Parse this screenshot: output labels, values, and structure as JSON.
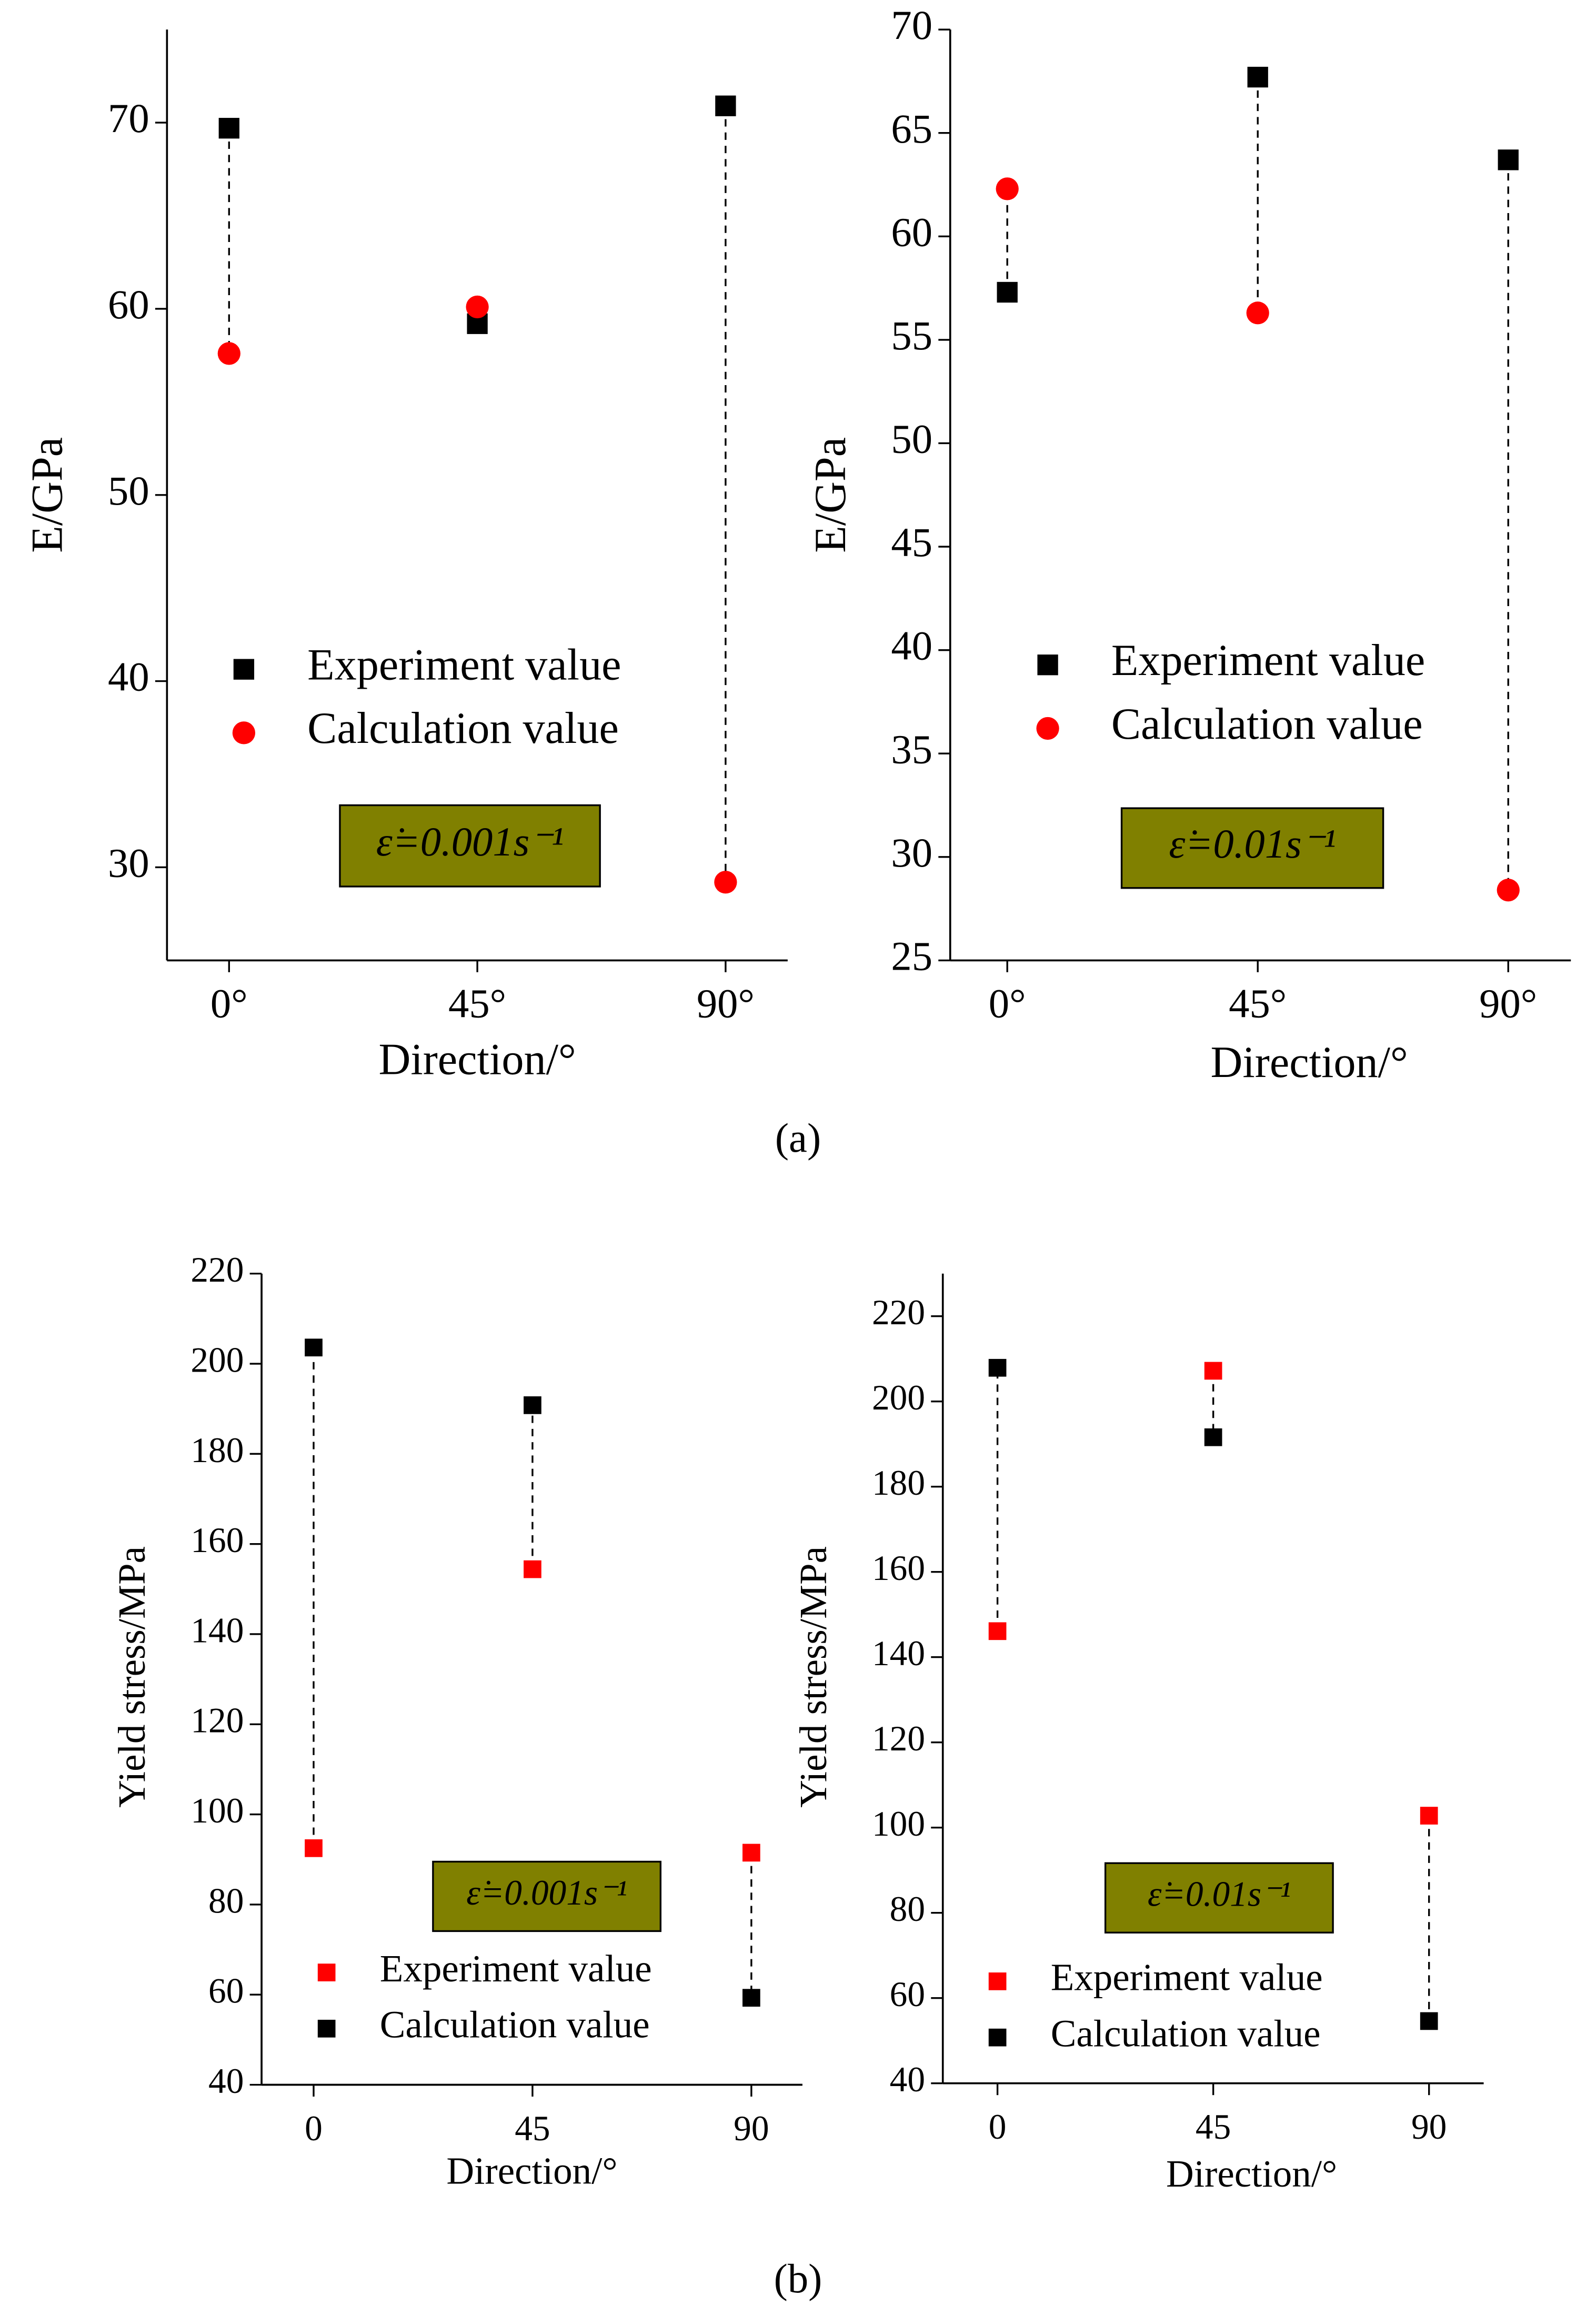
{
  "chart_data": [
    {
      "type": "scatter",
      "ylabel": "E/GPa",
      "xlabel": "Direction/°",
      "annotation": "ε̇=0.001s⁻¹",
      "x": [
        0,
        45,
        90
      ],
      "xlim": [
        -11.25,
        101.25
      ],
      "xticks": [
        {
          "value": 0,
          "label": "0°"
        },
        {
          "value": 45,
          "label": "45°"
        },
        {
          "value": 90,
          "label": "90°"
        }
      ],
      "ylim": [
        25,
        75
      ],
      "yticks": [
        30,
        40,
        50,
        60,
        70
      ],
      "series": [
        {
          "name": "Experiment value",
          "color": "#000000",
          "marker": "square",
          "values": [
            69.7,
            59.2,
            70.9
          ]
        },
        {
          "name": "Calculation value",
          "color": "#ff0000",
          "marker": "circle",
          "values": [
            57.6,
            60.1,
            29.2
          ]
        }
      ]
    },
    {
      "type": "scatter",
      "ylabel": "E/GPa",
      "xlabel": "Direction/°",
      "annotation": "ε̇=0.01s⁻¹",
      "x": [
        0,
        45,
        90
      ],
      "xlim": [
        -10.25,
        101.25
      ],
      "xticks": [
        {
          "value": 0,
          "label": "0°"
        },
        {
          "value": 45,
          "label": "45°"
        },
        {
          "value": 90,
          "label": "90°"
        }
      ],
      "ylim": [
        25,
        70
      ],
      "yticks": [
        25,
        30,
        35,
        40,
        45,
        50,
        55,
        60,
        65,
        70
      ],
      "series": [
        {
          "name": "Experiment value",
          "color": "#000000",
          "marker": "square",
          "values": [
            57.3,
            67.7,
            63.7
          ]
        },
        {
          "name": "Calculation value",
          "color": "#ff0000",
          "marker": "circle",
          "values": [
            62.3,
            56.3,
            28.4
          ]
        }
      ]
    },
    {
      "type": "scatter",
      "ylabel": "Yield stress/MPa",
      "xlabel": "Direction/°",
      "annotation": "ε̇=0.001s⁻¹",
      "x": [
        0,
        45,
        90
      ],
      "xlim": [
        -10.7,
        100.5
      ],
      "xticks": [
        0,
        45,
        90
      ],
      "ylim": [
        40,
        220
      ],
      "yticks": [
        40,
        60,
        80,
        100,
        120,
        140,
        160,
        180,
        200,
        220
      ],
      "series": [
        {
          "name": "Experiment value",
          "color": "#ff0000",
          "marker": "square",
          "values": [
            92.5,
            154.4,
            91.5
          ]
        },
        {
          "name": "Calculation value",
          "color": "#000000",
          "marker": "square",
          "values": [
            203.6,
            190.8,
            59.3
          ]
        }
      ]
    },
    {
      "type": "scatter",
      "ylabel": "Yield stress/MPa",
      "xlabel": "Direction/°",
      "annotation": "ε̇=0.01s⁻¹",
      "x": [
        0,
        45,
        90
      ],
      "xlim": [
        -11.4,
        101.4
      ],
      "xticks": [
        0,
        45,
        90
      ],
      "ylim": [
        40,
        230
      ],
      "yticks": [
        40,
        60,
        80,
        100,
        120,
        140,
        160,
        180,
        200,
        220
      ],
      "series": [
        {
          "name": "Experiment value",
          "color": "#ff0000",
          "marker": "square",
          "values": [
            146.1,
            207.2,
            102.8
          ]
        },
        {
          "name": "Calculation value",
          "color": "#000000",
          "marker": "square",
          "values": [
            207.9,
            191.6,
            54.6
          ]
        }
      ]
    }
  ],
  "captions": [
    "(a)",
    "(b)"
  ]
}
